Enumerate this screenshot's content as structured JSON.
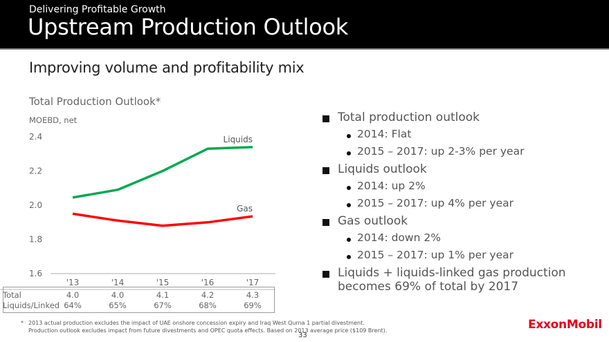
{
  "header": {
    "kicker": "Delivering Profitable Growth",
    "title": "Upstream Production Outlook"
  },
  "subtitle": "Improving volume and profitability mix",
  "chart_data": {
    "type": "line",
    "title": "Total Production Outlook*",
    "ylabel": "MOEBD, net",
    "xlabel": "",
    "categories": [
      "'13",
      "'14",
      "'15",
      "'16",
      "'17"
    ],
    "yticks": [
      "2.4",
      "2.2",
      "2.0",
      "1.8",
      "1.6"
    ],
    "ylim": [
      1.6,
      2.4
    ],
    "grid": false,
    "series": [
      {
        "name": "Liquids",
        "color": "#00a94f",
        "values": [
          2.045,
          2.09,
          2.2,
          2.33,
          2.34
        ]
      },
      {
        "name": "Gas",
        "color": "#ff0000",
        "values": [
          1.95,
          1.91,
          1.88,
          1.9,
          1.935
        ]
      }
    ]
  },
  "table": {
    "rows": [
      {
        "label": "Total",
        "values": [
          "4.0",
          "4.0",
          "4.1",
          "4.2",
          "4.3"
        ]
      },
      {
        "label": "Liquids/Linked",
        "values": [
          "64%",
          "65%",
          "67%",
          "68%",
          "69%"
        ]
      }
    ]
  },
  "bullets": [
    {
      "text": "Total production outlook",
      "sub": [
        "2014: Flat",
        "2015 – 2017: up 2-3% per year"
      ]
    },
    {
      "text": "Liquids outlook",
      "sub": [
        "2014: up 2%",
        "2015 – 2017: up 4% per year"
      ]
    },
    {
      "text": "Gas outlook",
      "sub": [
        "2014: down 2%",
        "2015 – 2017: up 1% per year"
      ]
    },
    {
      "text": "Liquids + liquids-linked gas production becomes 69% of total by 2017",
      "sub": []
    }
  ],
  "footnote": {
    "marker": "*",
    "line1": "2013 actual production excludes the impact of UAE onshore concession expiry and Iraq West Qurna 1 partial divestment.",
    "line2": "Production outlook excludes impact from future divestments and OPEC quota effects. Based on 2013 average price ($109 Brent)."
  },
  "page_number": "33",
  "logo": "ExxonMobil"
}
